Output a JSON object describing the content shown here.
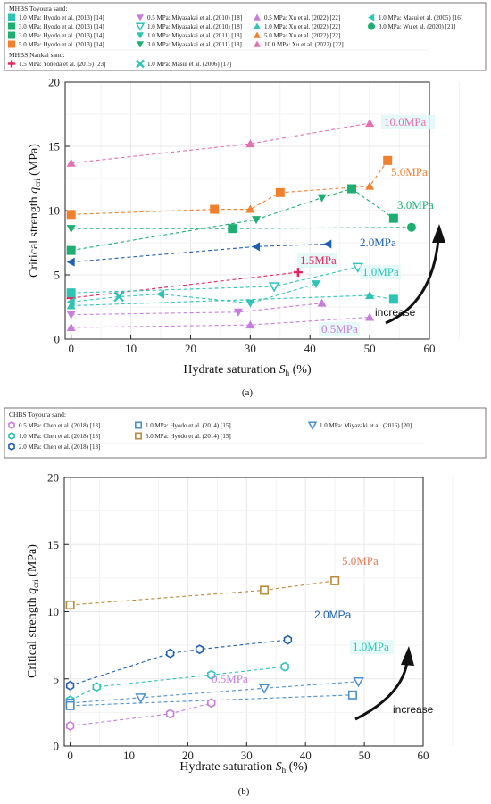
{
  "chart_data": [
    {
      "type": "scatter",
      "panel_label": "(a)",
      "xlabel_main": "Hydrate saturation ",
      "xlabel_sym": "S",
      "xlabel_sub": "h",
      "xlabel_tail": " (%)",
      "ylabel_main": "Critical strength ",
      "ylabel_sym": "q",
      "ylabel_sub": "cri",
      "ylabel_tail": " (MPa)",
      "xlim": [
        -1,
        60
      ],
      "ylim": [
        0,
        20
      ],
      "x_ticks": [
        "0",
        "10",
        "20",
        "30",
        "40",
        "50",
        "60"
      ],
      "y_ticks": [
        "0",
        "5",
        "10",
        "15",
        "20"
      ],
      "grid": true,
      "legend_groups": [
        {
          "title": "MHBS Toyoura sand:",
          "entries": [
            {
              "label": "1.0 MPa: Hyodo et al. (2013) [14]",
              "marker": "square",
              "color": "#2ec4b6"
            },
            {
              "label": "3.0 MPa: Hyodo et al. (2013) [14]",
              "marker": "square",
              "color": "#1fae72"
            },
            {
              "label": "3.0 MPa: Hyodo et al. (2013) [14]",
              "marker": "square",
              "color": "#1fae72"
            },
            {
              "label": "5.0 MPa: Hyodo et al. (2013) [14]",
              "marker": "square",
              "color": "#f07f2e"
            },
            {
              "label": "0.5 MPa: Miyazakai et al. (2010) [18]",
              "marker": "tri-down",
              "color": "#c77ddc"
            },
            {
              "label": "1.0 MPa: Miyazakai et al. (2010) [18]",
              "marker": "tri-down-open",
              "color": "#2ec4b6"
            },
            {
              "label": "1.0 MPa: Miyazakai et al. (2011) [18]",
              "marker": "tri-down",
              "color": "#2ec4b6"
            },
            {
              "label": "3.0 MPa: Miyazakai et al. (2011) [18]",
              "marker": "tri-down",
              "color": "#1fae72"
            },
            {
              "label": "0.5 MPa: Xu et al. (2022) [22]",
              "marker": "tri-up",
              "color": "#c77ddc"
            },
            {
              "label": "1.0 MPa: Xu et al. (2022) [22]",
              "marker": "tri-up",
              "color": "#2ec4b6"
            },
            {
              "label": "5.0 MPa: Xu et al. (2022) [22]",
              "marker": "tri-up",
              "color": "#f07f2e"
            },
            {
              "label": "10.0 MPa: Xu et al. (2022) [22]",
              "marker": "tri-up",
              "color": "#e66fb0"
            },
            {
              "label": "1.0 MPa: Masui et al. (2005) [16]",
              "marker": "tri-left",
              "color": "#2ec4b6"
            },
            {
              "label": "3.0 MPa: Wu et al. (2020) [21]",
              "marker": "circle",
              "color": "#1fae72"
            }
          ]
        },
        {
          "title": "MHBS Nankai sand:",
          "entries": [
            {
              "label": "1.5 MPa: Yoneda et al. (2015) [23]",
              "marker": "plus",
              "color": "#e8245c"
            },
            {
              "label": "1.0 MPa: Masui et al. (2006) [17]",
              "marker": "cross",
              "color": "#2ec4b6"
            }
          ]
        }
      ],
      "series": [
        {
          "label": "10.0MPa",
          "color": "#e66fb0",
          "x": [
            0,
            30,
            50
          ],
          "y": [
            13.7,
            15.2,
            16.8
          ]
        },
        {
          "label": "5.0MPa",
          "color": "#f07f2e",
          "x": [
            0,
            24,
            30,
            35,
            50,
            53
          ],
          "y": [
            9.7,
            10.1,
            10.1,
            11.4,
            11.9,
            13.9
          ]
        },
        {
          "label": "3.0MPa",
          "color": "#1fae72",
          "x": [
            0,
            31,
            42,
            47,
            54
          ],
          "y": [
            6.9,
            9.3,
            11.0,
            11.7,
            9.4
          ]
        },
        {
          "label": "3.0MPa",
          "color": "#1fae72",
          "x": [
            0,
            27,
            57
          ],
          "y": [
            8.6,
            8.6,
            8.7
          ]
        },
        {
          "label": "2.0MPa",
          "color": "#1f5fb0",
          "x": [
            0,
            31,
            43
          ],
          "y": [
            6.0,
            7.2,
            7.4
          ]
        },
        {
          "label": "1.5MPa",
          "color": "#e8245c",
          "x": [
            0,
            38
          ],
          "y": [
            3.2,
            5.2
          ]
        },
        {
          "label": "1.0MPa",
          "color": "#2ec4b6",
          "x": [
            0,
            34,
            48
          ],
          "y": [
            3.6,
            4.1,
            5.6
          ]
        },
        {
          "label": "1.0MPa",
          "color": "#2ec4b6",
          "x": [
            0,
            8,
            15,
            30,
            41
          ],
          "y": [
            2.9,
            3.3,
            3.5,
            2.8,
            4.3
          ]
        },
        {
          "label": "1.0MPa",
          "color": "#2ec4b6",
          "x": [
            0,
            50,
            54
          ],
          "y": [
            2.6,
            3.4,
            3.1
          ]
        },
        {
          "label": "0.5MPa",
          "color": "#c77ddc",
          "x": [
            0,
            28,
            42
          ],
          "y": [
            1.9,
            2.1,
            2.8
          ]
        },
        {
          "label": "0.5MPa",
          "color": "#c77ddc",
          "x": [
            0,
            30,
            50
          ],
          "y": [
            0.9,
            1.1,
            1.7
          ]
        }
      ],
      "annotations": [
        {
          "text": "10.0MPa",
          "color": "#e66fb0"
        },
        {
          "text": "5.0MPa",
          "color": "#f07f2e"
        },
        {
          "text": "3.0MPa",
          "color": "#1fae72"
        },
        {
          "text": "2.0MPa",
          "color": "#1f5fb0"
        },
        {
          "text": "1.5MPa",
          "color": "#e8245c"
        },
        {
          "text": "1.0MPa",
          "color": "#2ec4b6"
        },
        {
          "text": "0.5MPa",
          "color": "#c77ddc"
        },
        {
          "text": "increase",
          "color": "#111111"
        }
      ]
    },
    {
      "type": "scatter",
      "panel_label": "(b)",
      "xlabel_main": "Hydrate saturation ",
      "xlabel_sym": "S",
      "xlabel_sub": "h",
      "xlabel_tail": " (%)",
      "ylabel_main": "Critical strength ",
      "ylabel_sym": "q",
      "ylabel_sub": "cri",
      "ylabel_tail": " (MPa)",
      "xlim": [
        -1,
        60
      ],
      "ylim": [
        0,
        20
      ],
      "x_ticks": [
        "0",
        "10",
        "20",
        "30",
        "40",
        "50",
        "60"
      ],
      "y_ticks": [
        "0",
        "5",
        "10",
        "15",
        "20"
      ],
      "grid": true,
      "legend_groups": [
        {
          "title": "CHBS Toyoura sand:",
          "entries": [
            {
              "label": "0.5 MPa: Chen et al. (2018) [13]",
              "marker": "hexagon-open",
              "color": "#c77ddc"
            },
            {
              "label": "1.0 MPa: Chen et al. (2018) [13]",
              "marker": "hexagon-open",
              "color": "#2ec4b6"
            },
            {
              "label": "2.0 MPa: Chen et al. (2018) [13]",
              "marker": "hexagon-open",
              "color": "#1f5fb0"
            },
            {
              "label": "1.0 MPa: Hyodo et al. (2014) [15]",
              "marker": "square-open",
              "color": "#4a8fd0"
            },
            {
              "label": "5.0 MPa: Hyodo et al. (2014) [15]",
              "marker": "square-open",
              "color": "#b88a3a"
            },
            {
              "label": "1.0 MPa: Miyazaki et al. (2016) [20]",
              "marker": "tri-down-open",
              "color": "#4a8fd0"
            }
          ]
        }
      ],
      "series": [
        {
          "label": "5.0MPa",
          "color": "#b88a3a",
          "x": [
            0,
            33,
            45
          ],
          "y": [
            10.5,
            11.6,
            12.3
          ]
        },
        {
          "label": "2.0MPa",
          "color": "#1f5fb0",
          "x": [
            0,
            17,
            22,
            37
          ],
          "y": [
            4.5,
            6.9,
            7.2,
            7.9
          ]
        },
        {
          "label": "1.0MPa",
          "color": "#2ec4b6",
          "x": [
            0,
            4.5,
            24,
            36.5
          ],
          "y": [
            3.4,
            4.4,
            5.3,
            5.9
          ]
        },
        {
          "label": "1.0MPa",
          "color": "#4a8fd0",
          "x": [
            0,
            12,
            33,
            49
          ],
          "y": [
            3.2,
            3.6,
            4.3,
            4.8
          ]
        },
        {
          "label": "1.0MPa",
          "color": "#4a8fd0",
          "x": [
            0,
            48
          ],
          "y": [
            3.0,
            3.8
          ]
        },
        {
          "label": "0.5MPa",
          "color": "#c77ddc",
          "x": [
            0,
            17,
            24
          ],
          "y": [
            1.5,
            2.4,
            3.2
          ]
        }
      ],
      "annotations": [
        {
          "text": "5.0MPa",
          "color": "#e07b5a"
        },
        {
          "text": "2.0MPa",
          "color": "#1f5fb0"
        },
        {
          "text": "1.0MPa",
          "color": "#2ec4b6"
        },
        {
          "text": "0.5MPa",
          "color": "#c77ddc"
        },
        {
          "text": "increase",
          "color": "#111111"
        }
      ]
    }
  ]
}
